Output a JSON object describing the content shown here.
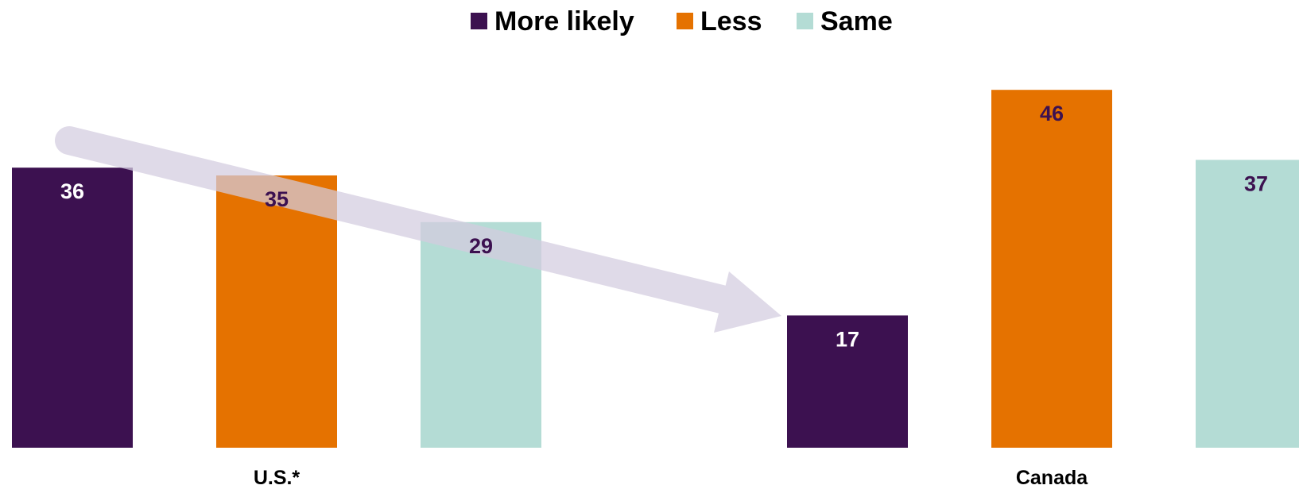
{
  "chart_data": {
    "type": "bar",
    "categories": [
      "U.S.*",
      "Canada"
    ],
    "series": [
      {
        "name": "More likely",
        "color": "#3c1150",
        "label_color": "#ffffff",
        "values": [
          36,
          17
        ]
      },
      {
        "name": "Less",
        "color": "#e57200",
        "label_color": "#3c1150",
        "values": [
          35,
          46
        ]
      },
      {
        "name": "Same",
        "color": "#b4dcd5",
        "label_color": "#3c1150",
        "values": [
          29,
          37
        ]
      }
    ],
    "ylim": [
      0,
      50
    ],
    "legend_position": "top-center",
    "grid": false,
    "annotations": [
      {
        "type": "arrow",
        "from": "U.S.* More likely",
        "to": "Canada More likely",
        "color": "#d4cce0"
      }
    ]
  }
}
